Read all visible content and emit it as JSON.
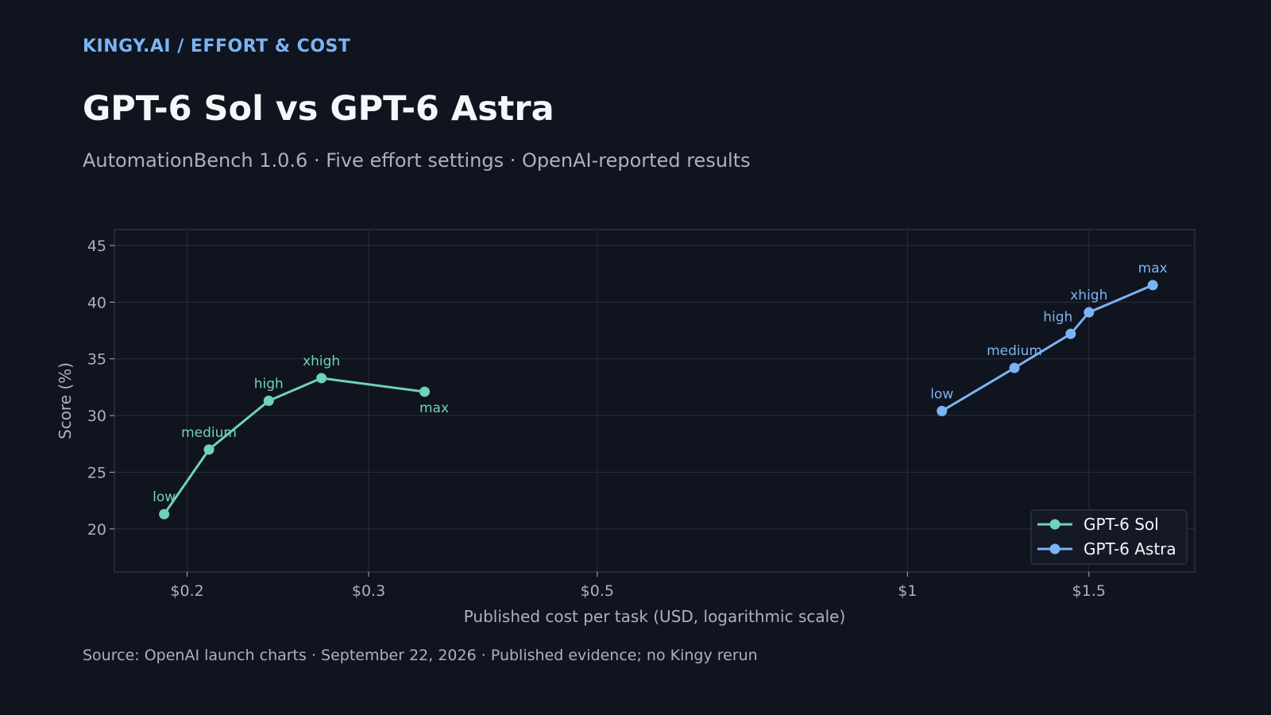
{
  "header": {
    "brand": "KINGY.AI  /  EFFORT & COST",
    "title": "GPT-6 Sol vs GPT-6 Astra",
    "subtitle": "AutomationBench 1.0.6 · Five effort settings · OpenAI-reported results"
  },
  "footer": {
    "source": "Source: OpenAI launch charts · September 22, 2026 · Published evidence; no Kingy rerun"
  },
  "colors": {
    "background": "#10141e",
    "brand": "#7ab4f5",
    "sol": "#6fd3b8",
    "astra": "#7ab4f5",
    "grid": "#2a2f3b",
    "text": "#aab2c0"
  },
  "chart_data": {
    "type": "line",
    "xlabel": "Published cost per task (USD, logarithmic scale)",
    "ylabel": "Score (%)",
    "x_scale": "log",
    "xlim": [
      0.17,
      1.9
    ],
    "ylim": [
      16.2,
      46.4
    ],
    "x_ticks": [
      {
        "value": 0.2,
        "label": "$0.2"
      },
      {
        "value": 0.3,
        "label": "$0.3"
      },
      {
        "value": 0.5,
        "label": "$0.5"
      },
      {
        "value": 1,
        "label": "$1"
      },
      {
        "value": 1.5,
        "label": "$1.5"
      }
    ],
    "y_ticks": [
      {
        "value": 20,
        "label": "20"
      },
      {
        "value": 25,
        "label": "25"
      },
      {
        "value": 30,
        "label": "30"
      },
      {
        "value": 35,
        "label": "35"
      },
      {
        "value": 40,
        "label": "40"
      },
      {
        "value": 45,
        "label": "45"
      }
    ],
    "grid": true,
    "legend_position": "bottom-right",
    "series": [
      {
        "name": "GPT-6 Sol",
        "color": "#6fd3b8",
        "points": [
          {
            "x": 0.19,
            "y": 21.3,
            "label": "low"
          },
          {
            "x": 0.21,
            "y": 27.0,
            "label": "medium"
          },
          {
            "x": 0.24,
            "y": 31.3,
            "label": "high"
          },
          {
            "x": 0.27,
            "y": 33.3,
            "label": "xhigh"
          },
          {
            "x": 0.34,
            "y": 32.1,
            "label": "max"
          }
        ]
      },
      {
        "name": "GPT-6 Astra",
        "color": "#7ab4f5",
        "points": [
          {
            "x": 1.08,
            "y": 30.4,
            "label": "low"
          },
          {
            "x": 1.27,
            "y": 34.2,
            "label": "medium"
          },
          {
            "x": 1.44,
            "y": 37.2,
            "label": "high"
          },
          {
            "x": 1.5,
            "y": 39.1,
            "label": "xhigh"
          },
          {
            "x": 1.73,
            "y": 41.5,
            "label": "max"
          }
        ]
      }
    ]
  }
}
